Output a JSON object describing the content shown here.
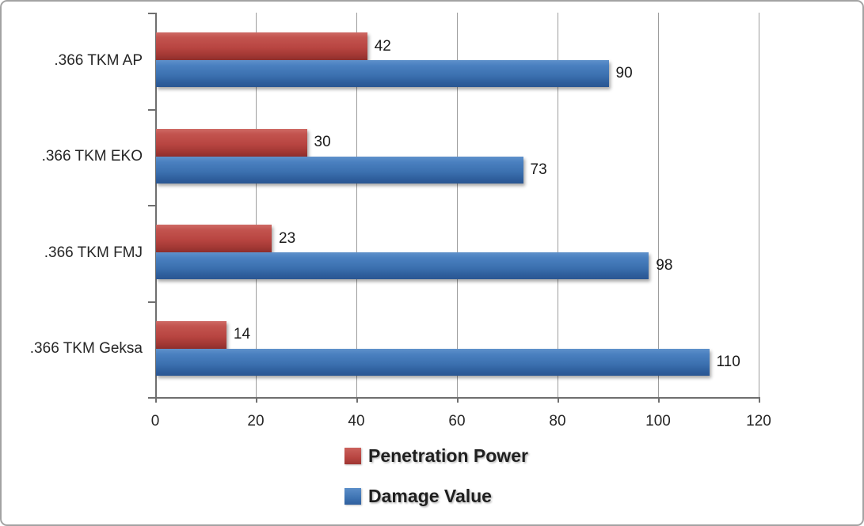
{
  "chart_data": {
    "type": "bar",
    "orientation": "horizontal",
    "title": "",
    "xlabel": "",
    "ylabel": "",
    "categories": [
      ".366 TKM AP",
      ".366 TKM EKO",
      ".366 TKM FMJ",
      ".366 TKM Geksa"
    ],
    "series": [
      {
        "name": "Penetration Power",
        "color": "#b84541",
        "values": [
          42,
          30,
          23,
          14
        ]
      },
      {
        "name": "Damage Value",
        "color": "#3e73b2",
        "values": [
          90,
          73,
          98,
          110
        ]
      }
    ],
    "xlim": [
      0,
      120
    ],
    "x_ticks": [
      0,
      20,
      40,
      60,
      80,
      100,
      120
    ],
    "grid": true,
    "data_labels": true,
    "legend_position": "bottom"
  },
  "colors": {
    "penetration_power": "#b84541",
    "damage_value": "#3e73b2",
    "gridline": "#9d9d9d",
    "axis": "#6f6f6f",
    "border": "#a3a3a3",
    "text": "#262626",
    "background": "#ffffff"
  }
}
